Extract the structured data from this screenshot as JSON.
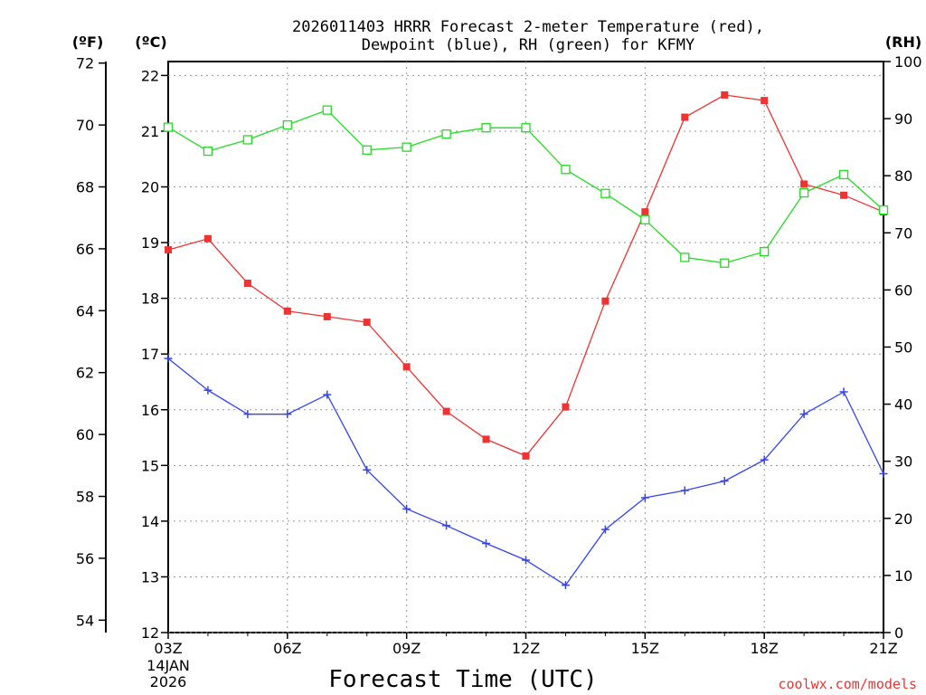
{
  "chart_data": {
    "type": "line",
    "title_line1": "2026011403 HRRR Forecast 2-meter Temperature (red),",
    "title_line2": "Dewpoint (blue), RH (green) for KFMY",
    "xlabel": "Forecast Time (UTC)",
    "credit": "coolwx.com/models",
    "units": {
      "fahrenheit": "(ºF)",
      "celsius": "(ºC)",
      "rh": "(RH)"
    },
    "x_hours": [
      3,
      4,
      5,
      6,
      7,
      8,
      9,
      10,
      11,
      12,
      13,
      14,
      15,
      16,
      17,
      18,
      19,
      20,
      21
    ],
    "x_range": [
      3,
      21
    ],
    "x_ticks": [
      {
        "hour": 3,
        "label": "03Z"
      },
      {
        "hour": 6,
        "label": "06Z"
      },
      {
        "hour": 9,
        "label": "09Z"
      },
      {
        "hour": 12,
        "label": "12Z"
      },
      {
        "hour": 15,
        "label": "15Z"
      },
      {
        "hour": 18,
        "label": "18Z"
      },
      {
        "hour": 21,
        "label": "21Z"
      }
    ],
    "date_label_line1": "14JAN",
    "date_label_line2": "2026",
    "celsius_axis": {
      "min": 12,
      "max": 22.25,
      "ticks": [
        "12",
        "13",
        "14",
        "15",
        "16",
        "17",
        "18",
        "19",
        "20",
        "21",
        "22"
      ]
    },
    "fahrenheit_axis": {
      "ticks": [
        "54",
        "56",
        "58",
        "60",
        "62",
        "64",
        "66",
        "68",
        "70",
        "72"
      ]
    },
    "rh_axis": {
      "min": 0,
      "max": 100,
      "ticks": [
        "0",
        "10",
        "20",
        "30",
        "40",
        "50",
        "60",
        "70",
        "80",
        "90",
        "100"
      ]
    },
    "series": [
      {
        "name": "2-meter Temperature",
        "unit": "°C",
        "color": "#ee3333",
        "marker": "filled-square",
        "values": [
          18.87,
          19.07,
          18.27,
          17.77,
          17.67,
          17.57,
          16.77,
          15.97,
          15.47,
          15.17,
          16.05,
          17.95,
          19.55,
          21.25,
          21.65,
          21.55,
          20.05,
          19.85,
          19.55
        ]
      },
      {
        "name": "Dewpoint",
        "unit": "°C",
        "color": "#3344ee",
        "marker": "plus",
        "values": [
          16.92,
          16.35,
          15.92,
          15.92,
          16.27,
          14.92,
          14.22,
          13.92,
          13.6,
          13.3,
          12.85,
          13.85,
          14.42,
          14.55,
          14.72,
          15.1,
          15.92,
          16.32,
          14.85
        ]
      },
      {
        "name": "RH",
        "unit": "%",
        "color": "#22dd22",
        "marker": "open-square",
        "values": [
          88.5,
          84.3,
          86.3,
          88.9,
          91.5,
          84.5,
          85.0,
          87.3,
          88.4,
          88.4,
          81.1,
          76.9,
          72.3,
          65.7,
          64.7,
          66.7,
          77.0,
          80.2,
          74.0
        ]
      }
    ]
  }
}
